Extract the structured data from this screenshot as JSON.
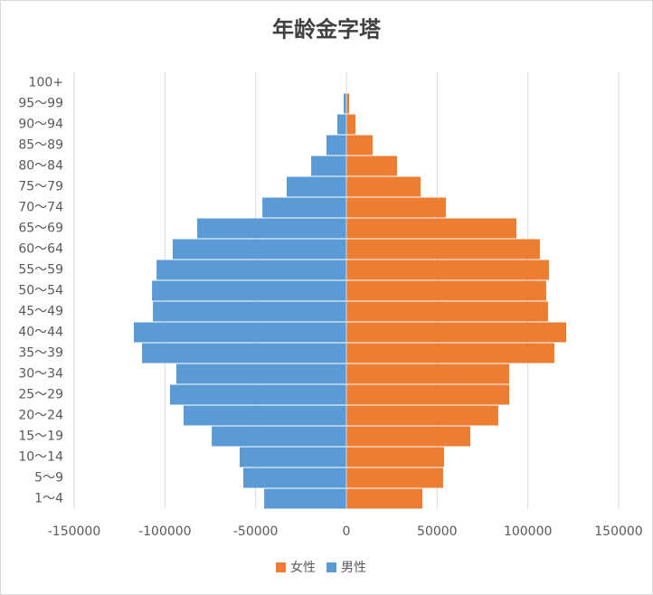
{
  "chart_data": {
    "type": "bar",
    "orientation": "horizontal",
    "title": "年龄金字塔",
    "categories": [
      "1～4",
      "5～9",
      "10～14",
      "15～19",
      "20～24",
      "25～29",
      "30～34",
      "35～39",
      "40～44",
      "45～49",
      "50～54",
      "55～59",
      "60～64",
      "65～69",
      "70～74",
      "75～79",
      "80～84",
      "85～89",
      "90～94",
      "95～99",
      "100+"
    ],
    "series": [
      {
        "name": "女性",
        "color": "#ed7d31",
        "values": [
          41900,
          53300,
          53800,
          68300,
          83700,
          89700,
          89700,
          114600,
          121100,
          111100,
          110100,
          111600,
          106600,
          93700,
          54800,
          40900,
          27900,
          14500,
          5000,
          1500,
          200
        ]
      },
      {
        "name": "男性",
        "color": "#5b9bd5",
        "values": [
          -45300,
          -56800,
          -58800,
          -74200,
          -89700,
          -97200,
          -93700,
          -112600,
          -117100,
          -106600,
          -107100,
          -104600,
          -95700,
          -82200,
          -46300,
          -32900,
          -19400,
          -11000,
          -5000,
          -1500,
          -200
        ]
      }
    ],
    "xlim": [
      -150000,
      150000
    ],
    "xticks": [
      -150000,
      -100000,
      -50000,
      0,
      50000,
      100000,
      150000
    ],
    "grid": true,
    "legend": "bottom"
  }
}
